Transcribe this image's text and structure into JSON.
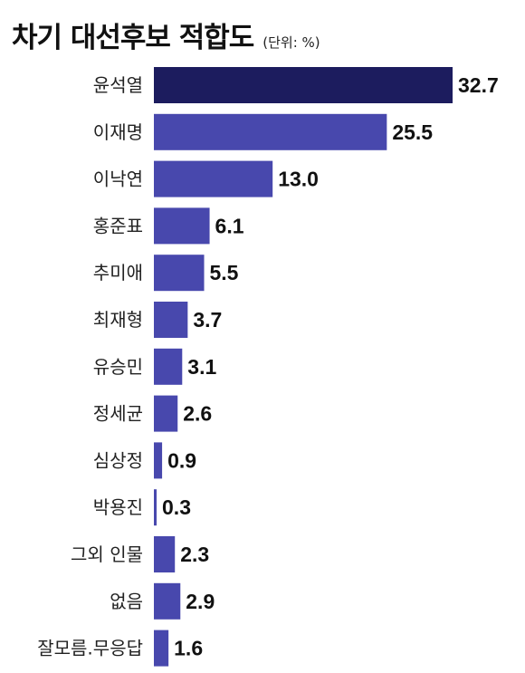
{
  "chart_data": {
    "type": "bar",
    "orientation": "horizontal",
    "title": "차기 대선후보 적합도",
    "unit_label": "(단위: %)",
    "categories": [
      "윤석열",
      "이재명",
      "이낙연",
      "홍준표",
      "추미애",
      "최재형",
      "유승민",
      "정세균",
      "심상정",
      "박용진",
      "그외 인물",
      "없음",
      "잘모름.무응답"
    ],
    "values": [
      32.7,
      25.5,
      13.0,
      6.1,
      5.5,
      3.7,
      3.1,
      2.6,
      0.9,
      0.3,
      2.3,
      2.9,
      1.6
    ],
    "value_labels": [
      "32.7",
      "25.5",
      "13.0",
      "6.1",
      "5.5",
      "3.7",
      "3.1",
      "2.6",
      "0.9",
      "0.3",
      "2.3",
      "2.9",
      "1.6"
    ],
    "highlight_color": "#1c1c5e",
    "bar_color": "#4848ad"
  }
}
